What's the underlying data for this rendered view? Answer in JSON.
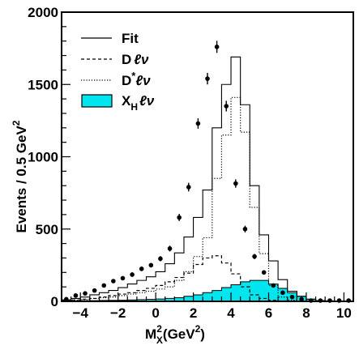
{
  "chart_data": {
    "type": "histogram",
    "xlabel": {
      "base": "M",
      "sup": "2",
      "sub": "X",
      "rest": "(GeV",
      "rest_sup": "2",
      "close": ")"
    },
    "ylabel": {
      "base": "Events / 0.5 GeV",
      "sup": "2"
    },
    "xlim": [
      -5,
      10.5
    ],
    "ylim": [
      0,
      2000
    ],
    "xticks_major": [
      -4,
      -2,
      0,
      2,
      4,
      6,
      8,
      10
    ],
    "xtick_labels": [
      "−4",
      "−2",
      "0",
      "2",
      "4",
      "6",
      "8",
      "10"
    ],
    "yticks_major": [
      0,
      500,
      1000,
      1500,
      2000
    ],
    "ytick_labels": [
      "0",
      "500",
      "1000",
      "1500",
      "2000"
    ],
    "bin_width": 0.5,
    "bin_edges_start": -5,
    "legend": {
      "position": "top-left",
      "entries": [
        {
          "key": "fit",
          "label": "Fit",
          "style": "solid"
        },
        {
          "key": "dlnu",
          "label_base": "D",
          "label_tail": "ℓν",
          "style": "dashed"
        },
        {
          "key": "dstarlnu",
          "label_base": "D",
          "label_sup": "*",
          "label_tail": "ℓν",
          "style": "dotted"
        },
        {
          "key": "xhlnu",
          "label_base": "X",
          "label_sub": "H",
          "label_tail": "ℓν",
          "style": "filled",
          "color": "#00e5ee"
        }
      ]
    },
    "series": [
      {
        "key": "fit",
        "values": [
          10,
          20,
          30,
          45,
          60,
          75,
          95,
          120,
          145,
          170,
          205,
          260,
          335,
          445,
          580,
          770,
          1200,
          1500,
          1690,
          1360,
          800,
          460,
          280,
          150,
          70,
          35,
          15,
          5,
          3,
          2,
          1
        ]
      },
      {
        "key": "dlnu",
        "values": [
          5,
          10,
          15,
          20,
          30,
          40,
          50,
          60,
          75,
          90,
          110,
          135,
          165,
          195,
          255,
          300,
          315,
          265,
          190,
          100,
          45,
          20,
          8,
          3,
          1,
          0,
          0,
          0,
          0,
          0,
          0
        ]
      },
      {
        "key": "dstarlnu",
        "values": [
          5,
          8,
          12,
          20,
          25,
          30,
          40,
          50,
          60,
          70,
          85,
          100,
          145,
          205,
          310,
          440,
          850,
          1150,
          1410,
          1170,
          650,
          330,
          110,
          30,
          8,
          2,
          1,
          0,
          0,
          0,
          0
        ]
      },
      {
        "key": "xhlnu",
        "values": [
          2,
          3,
          4,
          5,
          6,
          7,
          8,
          10,
          12,
          14,
          16,
          20,
          25,
          35,
          45,
          60,
          75,
          95,
          115,
          135,
          145,
          145,
          120,
          90,
          60,
          35,
          15,
          5,
          2,
          1,
          0
        ]
      }
    ],
    "data_points": {
      "x": [
        -4.75,
        -4.25,
        -3.75,
        -3.25,
        -2.75,
        -2.25,
        -1.75,
        -1.25,
        -0.75,
        -0.25,
        0.25,
        0.75,
        1.25,
        1.75,
        2.25,
        2.75,
        3.25,
        3.75,
        4.25,
        4.75,
        5.25,
        5.75,
        6.25,
        6.75,
        7.25,
        7.75,
        8.25,
        8.75,
        9.25,
        9.75,
        10.25
      ],
      "y": [
        15,
        40,
        55,
        75,
        110,
        140,
        160,
        185,
        225,
        250,
        295,
        365,
        580,
        790,
        1230,
        1540,
        1760,
        1350,
        815,
        500,
        310,
        200,
        110,
        60,
        30,
        15,
        5,
        0,
        2,
        0,
        0
      ],
      "yerr": [
        10,
        10,
        10,
        12,
        12,
        14,
        14,
        15,
        16,
        16,
        18,
        20,
        25,
        30,
        36,
        40,
        42,
        37,
        29,
        23,
        18,
        15,
        11,
        8,
        6,
        5,
        3,
        2,
        2,
        1,
        1
      ]
    }
  }
}
